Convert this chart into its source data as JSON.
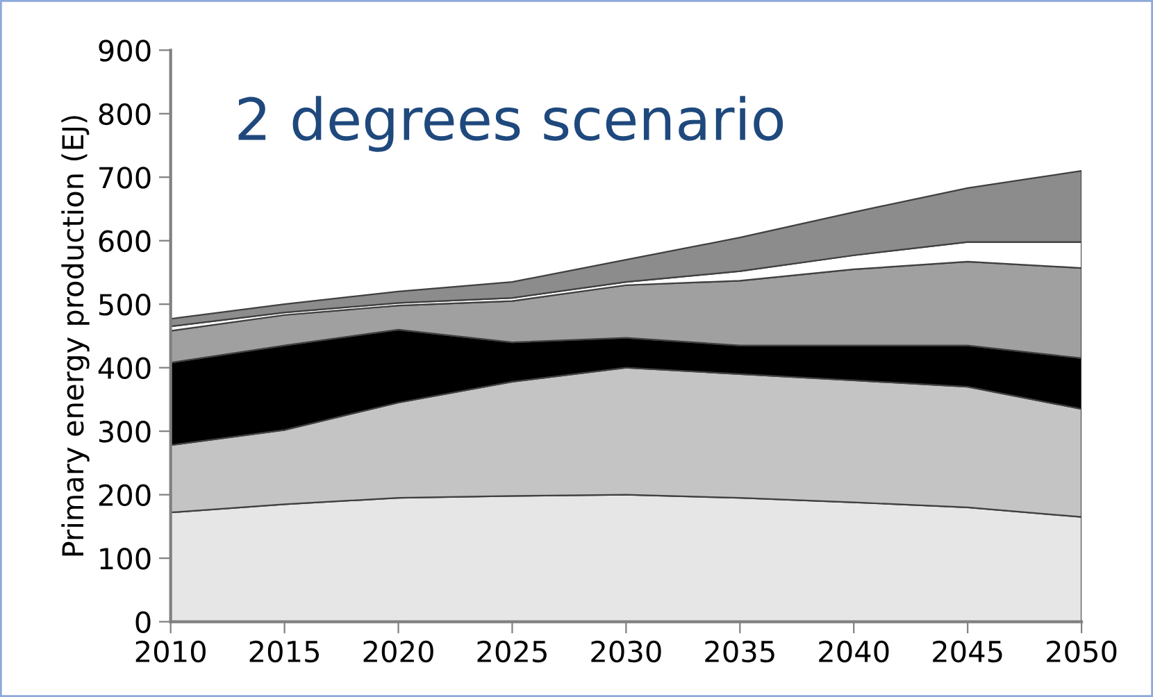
{
  "chart_data": {
    "type": "area",
    "stacked": true,
    "title": "2 degrees scenario",
    "ylabel": "Primary energy production (EJ)",
    "x": [
      2010,
      2015,
      2020,
      2025,
      2030,
      2035,
      2040,
      2045,
      2050
    ],
    "series": [
      {
        "color": "#e6e6e6",
        "values": [
          172,
          185,
          195,
          198,
          200,
          195,
          188,
          180,
          165
        ]
      },
      {
        "color": "#c4c4c4",
        "values": [
          106,
          117,
          150,
          180,
          200,
          195,
          192,
          190,
          170
        ]
      },
      {
        "color": "#000000",
        "values": [
          130,
          133,
          115,
          62,
          47,
          45,
          55,
          65,
          80
        ]
      },
      {
        "color": "#a0a0a0",
        "values": [
          50,
          48,
          38,
          65,
          83,
          102,
          120,
          132,
          142
        ]
      },
      {
        "color": "#ffffff",
        "values": [
          7,
          4,
          4,
          5,
          5,
          15,
          22,
          31,
          41
        ]
      },
      {
        "color": "#8c8c8c",
        "values": [
          12,
          13,
          18,
          25,
          35,
          53,
          68,
          85,
          112
        ]
      }
    ],
    "xlim": [
      2010,
      2050
    ],
    "xticks": [
      2010,
      2015,
      2020,
      2025,
      2030,
      2035,
      2040,
      2045,
      2050
    ],
    "ylim": [
      0,
      900
    ],
    "yticks": [
      0,
      100,
      200,
      300,
      400,
      500,
      600,
      700,
      800,
      900
    ],
    "grid": false,
    "legend": false
  }
}
